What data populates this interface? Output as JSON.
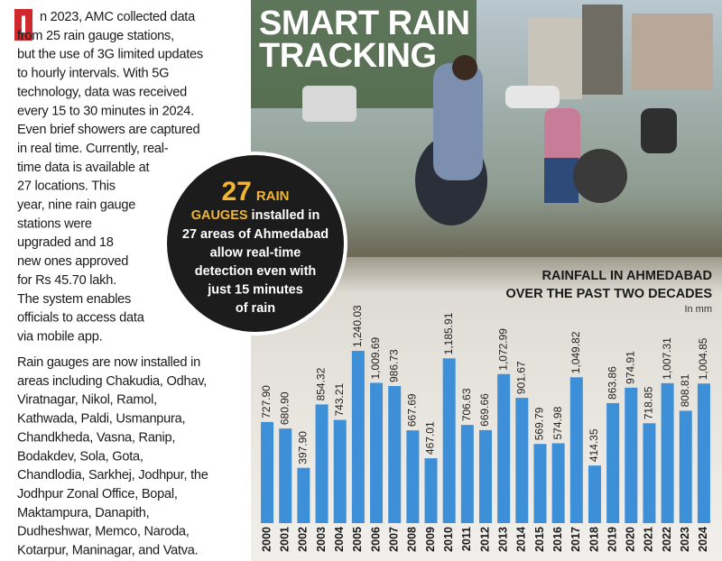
{
  "article": {
    "drop_cap": "I",
    "paragraphs": [
      [
        "n 2023, AMC collected data",
        "from 25 rain gauge stations,",
        "but the use of 3G limited updates",
        "to hourly intervals. With 5G",
        "technology, data was received",
        "every 15 to 30 minutes in 2024.",
        "Even brief showers are captured",
        "in real time. Currently, real-",
        "time data is available at",
        "27 locations. This",
        "year, nine rain gauge",
        "stations were",
        "upgraded and 18",
        "new ones approved",
        "for Rs 45.70 lakh.",
        "The system enables",
        "officials to access data",
        "via mobile app."
      ],
      [
        "Rain gauges are now installed in",
        "areas including Chakudia, Odhav,",
        "Viratnagar, Nikol, Ramol,",
        "Kathwada, Paldi, Usmanpura,",
        "Chandkheda, Vasna, Ranip,",
        "Bodakdev, Sola, Gota,",
        "Chandlodia, Sarkhej, Jodhpur, the",
        "Jodhpur Zonal Office, Bopal,",
        "Maktampura, Danapith,",
        "Dudheshwar, Memco, Naroda,",
        "Kotarpur, Maninagar, and Vatva."
      ]
    ]
  },
  "headline": [
    "SMART RAIN",
    "TRACKING"
  ],
  "callout": {
    "number": "27",
    "word1": "RAIN",
    "word2": "GAUGES",
    "rest2": " installed in",
    "lines": [
      "27 areas of Ahmedabad",
      "allow real-time",
      "detection even with",
      "just 15 minutes",
      "of rain"
    ]
  },
  "chart_data": {
    "type": "bar",
    "title": [
      "RAINFALL IN AHMEDABAD",
      "OVER THE PAST TWO DECADES"
    ],
    "unit_label": "In mm",
    "color": "#3d8fd8",
    "categories": [
      "2000",
      "2001",
      "2002",
      "2003",
      "2004",
      "2005",
      "2006",
      "2007",
      "2008",
      "2009",
      "2010",
      "2011",
      "2012",
      "2013",
      "2014",
      "2015",
      "2016",
      "2017",
      "2018",
      "2019",
      "2020",
      "2021",
      "2022",
      "2023",
      "2024"
    ],
    "values": [
      727.9,
      680.9,
      397.9,
      854.32,
      743.21,
      1240.03,
      1009.69,
      986.73,
      667.69,
      467.01,
      1185.91,
      706.63,
      669.66,
      1072.99,
      901.67,
      569.79,
      574.98,
      1049.82,
      414.35,
      863.86,
      974.91,
      718.85,
      1007.31,
      808.81,
      1004.85
    ],
    "value_labels": [
      "727.90",
      "680.90",
      "397.90",
      "854.32",
      "743.21",
      "1,240.03",
      "1,009.69",
      "986.73",
      "667.69",
      "467.01",
      "1,185.91",
      "706.63",
      "669.66",
      "1,072.99",
      "901.67",
      "569.79",
      "574.98",
      "1,049.82",
      "414.35",
      "863.86",
      "974.91",
      "718.85",
      "1,007.31",
      "808.81",
      "1,004.85"
    ]
  }
}
